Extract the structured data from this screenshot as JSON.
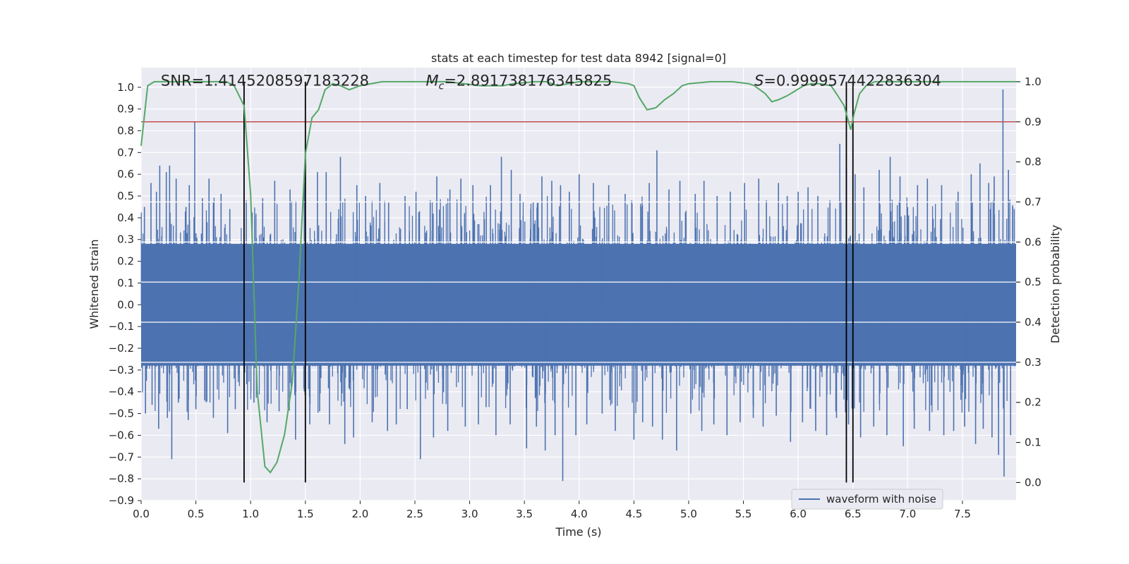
{
  "chart_data": {
    "type": "line",
    "title": "stats at each timestep for test data 8942 [signal=0]",
    "xlabel": "Time (s)",
    "ylabel": "Whitened strain",
    "ylabel_right": "Detection probability",
    "xlim": [
      0.0,
      7.99
    ],
    "ylim": [
      -0.9,
      1.09
    ],
    "ylim_right": [
      -0.045,
      1.035
    ],
    "x_ticks": [
      0.0,
      0.5,
      1.0,
      1.5,
      2.0,
      2.5,
      3.0,
      3.5,
      4.0,
      4.5,
      5.0,
      5.5,
      6.0,
      6.5,
      7.0,
      7.5
    ],
    "x_tick_labels": [
      "0.0",
      "0.5",
      "1.0",
      "1.5",
      "2.0",
      "2.5",
      "3.0",
      "3.5",
      "4.0",
      "4.5",
      "5.0",
      "5.5",
      "6.0",
      "6.5",
      "7.0",
      "7.5"
    ],
    "y_ticks": [
      1.0,
      0.9,
      0.8,
      0.7,
      0.6,
      0.5,
      0.4,
      0.3,
      0.2,
      0.1,
      0.0,
      -0.1,
      -0.2,
      -0.3,
      -0.4,
      -0.5,
      -0.6,
      -0.7,
      -0.8,
      -0.9
    ],
    "y_tick_labels": [
      "1.0",
      "0.9",
      "0.8",
      "0.7",
      "0.6",
      "0.5",
      "0.4",
      "0.3",
      "0.2",
      "0.1",
      "0.0",
      "−0.1",
      "−0.2",
      "−0.3",
      "−0.4",
      "−0.5",
      "−0.6",
      "−0.7",
      "−0.8",
      "−0.9"
    ],
    "y_right_ticks": [
      1.0,
      0.9,
      0.8,
      0.7,
      0.6,
      0.5,
      0.4,
      0.3,
      0.2,
      0.1,
      0.0
    ],
    "y_right_tick_labels": [
      "1.0",
      "0.9",
      "0.8",
      "0.7",
      "0.6",
      "0.5",
      "0.4",
      "0.3",
      "0.2",
      "0.1",
      "0.0"
    ],
    "annotations": [
      {
        "prefix": "SNR",
        "subscript": "",
        "text": "=1.4145208597183228",
        "x": 0.18,
        "y": 1.03
      },
      {
        "prefix": "M",
        "subscript": "c",
        "text": "=2.891738176345825",
        "x": 2.6,
        "y": 1.03
      },
      {
        "prefix": "S",
        "subscript": "",
        "text": "=0.9999574422836304",
        "x": 5.6,
        "y": 1.03
      }
    ],
    "legend": {
      "label": "waveform with noise",
      "position": "lower right"
    },
    "threshold": {
      "y_right": 0.9,
      "color": "#c44e52"
    },
    "vlines": [
      {
        "x": 0.94,
        "y_from": 0.0,
        "y_to": 1.0
      },
      {
        "x": 1.5,
        "y_from": 0.0,
        "y_to": 1.0
      },
      {
        "x": 6.44,
        "y_from": 0.0,
        "y_to": 1.0
      },
      {
        "x": 6.5,
        "y_from": 0.0,
        "y_to": 1.0
      }
    ],
    "probability_series": {
      "name": "Detection probability",
      "color": "#55a868",
      "x": [
        0.0,
        0.06,
        0.12,
        0.2,
        0.3,
        0.4,
        0.5,
        0.6,
        0.7,
        0.78,
        0.85,
        0.94,
        1.0,
        1.06,
        1.13,
        1.18,
        1.24,
        1.31,
        1.38,
        1.44,
        1.5,
        1.56,
        1.62,
        1.68,
        1.75,
        1.82,
        1.9,
        2.0,
        2.2,
        2.5,
        2.8,
        3.1,
        3.3,
        3.4,
        3.6,
        3.7,
        3.8,
        4.0,
        4.3,
        4.45,
        4.5,
        4.55,
        4.62,
        4.7,
        4.78,
        4.86,
        4.94,
        5.0,
        5.2,
        5.4,
        5.55,
        5.6,
        5.7,
        5.76,
        5.82,
        5.9,
        5.96,
        6.05,
        6.12,
        6.2,
        6.3,
        6.35,
        6.42,
        6.48,
        6.51,
        6.56,
        6.62,
        6.7,
        6.9,
        7.2,
        7.5,
        7.8,
        7.99
      ],
      "values": [
        0.84,
        0.99,
        1.0,
        1.0,
        1.0,
        1.0,
        1.0,
        1.0,
        1.0,
        1.0,
        0.99,
        0.94,
        0.72,
        0.23,
        0.04,
        0.025,
        0.05,
        0.12,
        0.25,
        0.5,
        0.82,
        0.91,
        0.93,
        0.98,
        0.995,
        0.99,
        0.98,
        0.99,
        1.0,
        1.0,
        1.0,
        0.99,
        0.99,
        0.995,
        1.0,
        1.0,
        0.99,
        1.0,
        1.0,
        0.995,
        0.99,
        0.96,
        0.93,
        0.935,
        0.955,
        0.97,
        0.99,
        0.995,
        1.0,
        1.0,
        0.995,
        0.99,
        0.97,
        0.95,
        0.955,
        0.965,
        0.975,
        0.99,
        0.995,
        0.995,
        0.99,
        0.97,
        0.94,
        0.88,
        0.92,
        0.97,
        0.99,
        1.0,
        1.0,
        1.0,
        1.0,
        1.0,
        1.0
      ]
    },
    "waveform_series": {
      "name": "waveform with noise",
      "color": "#4c72b0",
      "x_range": [
        0.0,
        7.99
      ],
      "band": [
        -0.28,
        0.28
      ],
      "spikes": [
        [
          0.03,
          0.45
        ],
        [
          0.09,
          0.56
        ],
        [
          0.14,
          0.52
        ],
        [
          0.17,
          0.64
        ],
        [
          0.23,
          0.61
        ],
        [
          0.26,
          0.64
        ],
        [
          0.32,
          0.58
        ],
        [
          0.41,
          0.45
        ],
        [
          0.44,
          0.55
        ],
        [
          0.49,
          0.84
        ],
        [
          0.56,
          0.49
        ],
        [
          0.62,
          0.58
        ],
        [
          0.66,
          0.47
        ],
        [
          0.73,
          0.51
        ],
        [
          0.81,
          0.44
        ],
        [
          0.96,
          0.48
        ],
        [
          1.11,
          0.49
        ],
        [
          1.22,
          0.57
        ],
        [
          1.36,
          0.53
        ],
        [
          1.49,
          0.56
        ],
        [
          1.61,
          0.61
        ],
        [
          1.69,
          0.61
        ],
        [
          1.82,
          0.68
        ],
        [
          1.97,
          0.55
        ],
        [
          2.05,
          0.5
        ],
        [
          2.18,
          0.56
        ],
        [
          2.26,
          0.47
        ],
        [
          2.41,
          0.5
        ],
        [
          2.51,
          0.52
        ],
        [
          2.64,
          0.48
        ],
        [
          2.7,
          0.59
        ],
        [
          2.82,
          0.53
        ],
        [
          2.92,
          0.58
        ],
        [
          3.03,
          0.55
        ],
        [
          3.19,
          0.55
        ],
        [
          3.29,
          0.68
        ],
        [
          3.38,
          0.62
        ],
        [
          3.46,
          0.51
        ],
        [
          3.58,
          0.47
        ],
        [
          3.66,
          0.59
        ],
        [
          3.75,
          0.57
        ],
        [
          3.83,
          0.55
        ],
        [
          3.91,
          0.52
        ],
        [
          4.0,
          0.6
        ],
        [
          4.13,
          0.56
        ],
        [
          4.27,
          0.55
        ],
        [
          4.42,
          0.51
        ],
        [
          4.48,
          0.48
        ],
        [
          4.64,
          0.56
        ],
        [
          4.71,
          0.71
        ],
        [
          4.82,
          0.53
        ],
        [
          4.92,
          0.57
        ],
        [
          5.06,
          0.51
        ],
        [
          5.14,
          0.57
        ],
        [
          5.26,
          0.5
        ],
        [
          5.38,
          0.52
        ],
        [
          5.51,
          0.56
        ],
        [
          5.64,
          0.58
        ],
        [
          5.71,
          0.48
        ],
        [
          5.82,
          0.56
        ],
        [
          5.9,
          0.5
        ],
        [
          6.0,
          0.52
        ],
        [
          6.09,
          0.54
        ],
        [
          6.18,
          0.5
        ],
        [
          6.29,
          0.48
        ],
        [
          6.38,
          0.74
        ],
        [
          6.44,
          0.63
        ],
        [
          6.52,
          0.6
        ],
        [
          6.6,
          0.54
        ],
        [
          6.74,
          0.62
        ],
        [
          6.84,
          0.68
        ],
        [
          6.93,
          0.59
        ],
        [
          7.09,
          0.55
        ],
        [
          7.18,
          0.58
        ],
        [
          7.31,
          0.55
        ],
        [
          7.46,
          0.52
        ],
        [
          7.58,
          0.6
        ],
        [
          7.66,
          0.65
        ],
        [
          7.74,
          0.56
        ],
        [
          7.79,
          0.59
        ],
        [
          7.87,
          0.99
        ],
        [
          7.92,
          0.62
        ],
        [
          7.96,
          0.45
        ],
        [
          0.04,
          -0.5
        ],
        [
          0.1,
          -0.46
        ],
        [
          0.16,
          -0.57
        ],
        [
          0.24,
          -0.52
        ],
        [
          0.28,
          -0.71
        ],
        [
          0.34,
          -0.45
        ],
        [
          0.43,
          -0.53
        ],
        [
          0.5,
          -0.48
        ],
        [
          0.58,
          -0.44
        ],
        [
          0.66,
          -0.52
        ],
        [
          0.79,
          -0.59
        ],
        [
          0.86,
          -0.48
        ],
        [
          1.03,
          -0.45
        ],
        [
          1.15,
          -0.54
        ],
        [
          1.26,
          -0.49
        ],
        [
          1.41,
          -0.62
        ],
        [
          1.54,
          -0.55
        ],
        [
          1.63,
          -0.49
        ],
        [
          1.72,
          -0.55
        ],
        [
          1.86,
          -0.64
        ],
        [
          1.94,
          -0.61
        ],
        [
          2.11,
          -0.54
        ],
        [
          2.25,
          -0.58
        ],
        [
          2.33,
          -0.55
        ],
        [
          2.43,
          -0.48
        ],
        [
          2.55,
          -0.71
        ],
        [
          2.67,
          -0.61
        ],
        [
          2.8,
          -0.58
        ],
        [
          2.96,
          -0.56
        ],
        [
          3.08,
          -0.55
        ],
        [
          3.15,
          -0.47
        ],
        [
          3.24,
          -0.6
        ],
        [
          3.37,
          -0.55
        ],
        [
          3.52,
          -0.66
        ],
        [
          3.61,
          -0.56
        ],
        [
          3.69,
          -0.67
        ],
        [
          3.78,
          -0.6
        ],
        [
          3.85,
          -0.81
        ],
        [
          3.97,
          -0.6
        ],
        [
          4.07,
          -0.55
        ],
        [
          4.21,
          -0.5
        ],
        [
          4.33,
          -0.58
        ],
        [
          4.5,
          -0.62
        ],
        [
          4.58,
          -0.54
        ],
        [
          4.67,
          -0.56
        ],
        [
          4.76,
          -0.62
        ],
        [
          4.89,
          -0.67
        ],
        [
          5.02,
          -0.5
        ],
        [
          5.12,
          -0.58
        ],
        [
          5.23,
          -0.55
        ],
        [
          5.35,
          -0.6
        ],
        [
          5.47,
          -0.54
        ],
        [
          5.59,
          -0.52
        ],
        [
          5.68,
          -0.56
        ],
        [
          5.8,
          -0.51
        ],
        [
          5.93,
          -0.63
        ],
        [
          6.04,
          -0.54
        ],
        [
          6.16,
          -0.58
        ],
        [
          6.26,
          -0.6
        ],
        [
          6.35,
          -0.52
        ],
        [
          6.46,
          -0.55
        ],
        [
          6.57,
          -0.61
        ],
        [
          6.69,
          -0.56
        ],
        [
          6.81,
          -0.6
        ],
        [
          6.96,
          -0.65
        ],
        [
          7.06,
          -0.57
        ],
        [
          7.2,
          -0.58
        ],
        [
          7.33,
          -0.6
        ],
        [
          7.42,
          -0.58
        ],
        [
          7.52,
          -0.56
        ],
        [
          7.62,
          -0.64
        ],
        [
          7.69,
          -0.57
        ],
        [
          7.77,
          -0.61
        ],
        [
          7.83,
          -0.69
        ],
        [
          7.88,
          -0.79
        ],
        [
          7.94,
          -0.6
        ]
      ]
    }
  }
}
